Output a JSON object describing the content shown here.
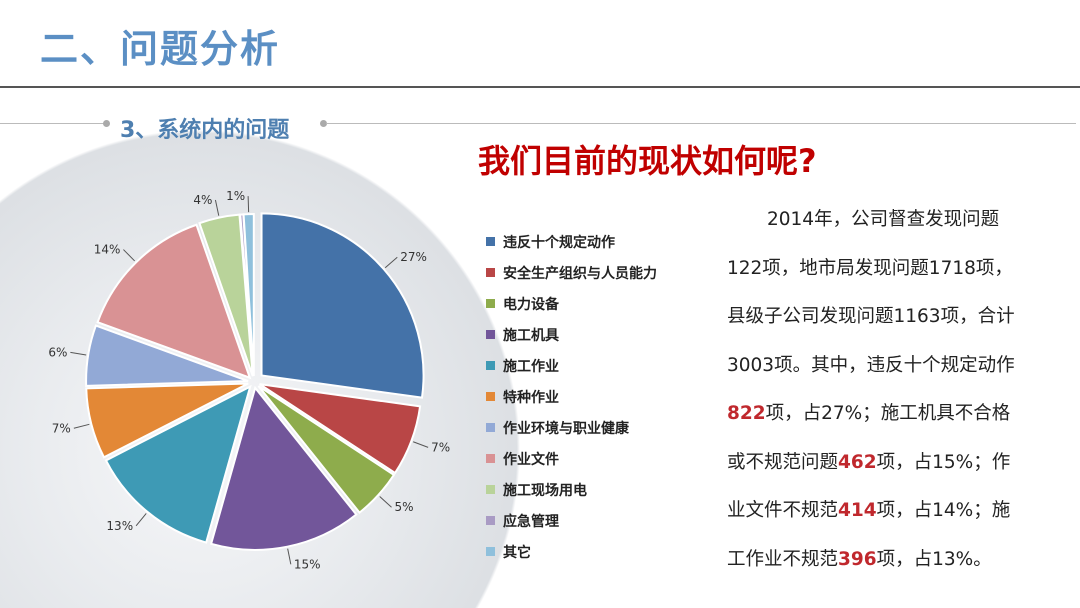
{
  "header": {
    "title": "二、问题分析",
    "subtitle": "3、系统内的问题"
  },
  "headline": "我们目前的现状如何呢?",
  "chart_data": {
    "type": "pie",
    "start": "12 o'clock, clockwise",
    "exploded": true,
    "legend_position": "right",
    "categories": [
      "违反十个规定动作",
      "安全生产组织与人员能力",
      "电力设备",
      "施工机具",
      "施工作业",
      "特种作业",
      "作业环境与职业健康",
      "作业文件",
      "施工现场用电",
      "应急管理",
      "其它"
    ],
    "values": [
      27,
      7,
      5,
      15,
      13,
      7,
      6,
      14,
      4,
      0.3,
      1
    ],
    "labels": [
      "27%",
      "7%",
      "5%",
      "15%",
      "13%",
      "7%",
      "6%",
      "14%",
      "4%",
      "",
      "1%"
    ],
    "colors": [
      "#4472a8",
      "#b94646",
      "#8eac4c",
      "#72569a",
      "#3e9ab5",
      "#e38836",
      "#92a9d6",
      "#d99294",
      "#b9d39a",
      "#a99bc4",
      "#8fc0dc"
    ]
  },
  "paragraph": [
    [
      {
        "t": "2014年，公司督查发现问题",
        "red": false
      }
    ],
    [
      {
        "t": "122项，地市局发现问题1718项，",
        "red": false
      }
    ],
    [
      {
        "t": "县级子公司发现问题1163项，合计",
        "red": false
      }
    ],
    [
      {
        "t": "3003项。其中，违反十个规定动作",
        "red": false
      }
    ],
    [
      {
        "t": "822",
        "red": true
      },
      {
        "t": "项，占27%；施工机具不合格",
        "red": false
      }
    ],
    [
      {
        "t": "或不规范问题",
        "red": false
      },
      {
        "t": "462",
        "red": true
      },
      {
        "t": "项，占15%；作",
        "red": false
      }
    ],
    [
      {
        "t": "业文件不规范",
        "red": false
      },
      {
        "t": "414",
        "red": true
      },
      {
        "t": "项，占14%；施",
        "red": false
      }
    ],
    [
      {
        "t": "工作业不规范",
        "red": false
      },
      {
        "t": "396",
        "red": true
      },
      {
        "t": "项，占13%。",
        "red": false
      }
    ]
  ]
}
